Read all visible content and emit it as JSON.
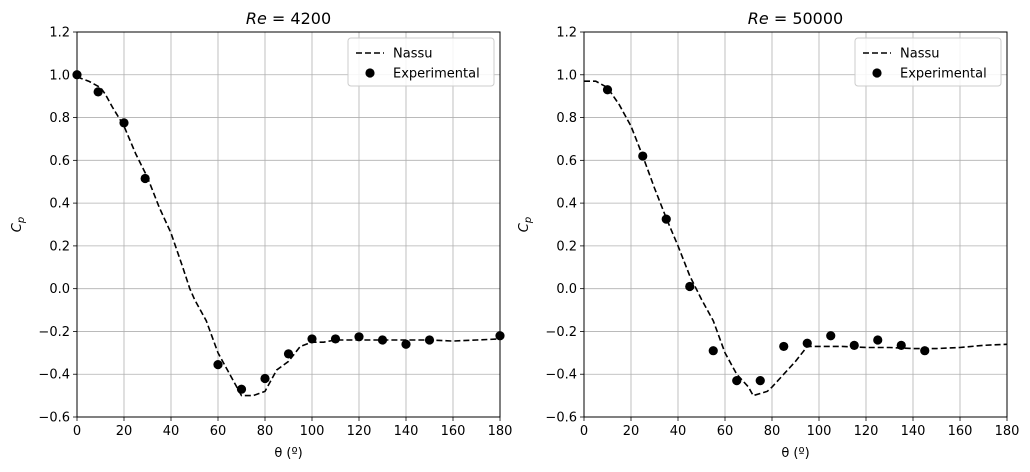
{
  "chart_data": [
    {
      "type": "line",
      "title": "Re = 4200",
      "title_italic_part": "Re",
      "title_rest": " = 4200",
      "xlabel": "θ (º)",
      "ylabel": "Cp",
      "xlim": [
        0,
        180
      ],
      "ylim": [
        -0.6,
        1.2
      ],
      "xticks": [
        "0",
        "20",
        "40",
        "60",
        "80",
        "100",
        "120",
        "140",
        "160",
        "180"
      ],
      "yticks": [
        "−0.6",
        "−0.4",
        "−0.2",
        "0.0",
        "0.2",
        "0.4",
        "0.6",
        "0.8",
        "1.0",
        "1.2"
      ],
      "grid": true,
      "legend": "top-right",
      "series": [
        {
          "name": "Nassu",
          "style": "dashed-line",
          "color": "#000000",
          "x": [
            0,
            5,
            10,
            12,
            15,
            20,
            25,
            30,
            35,
            40,
            45,
            48,
            50,
            55,
            60,
            65,
            70,
            75,
            80,
            85,
            90,
            95,
            100,
            105,
            110,
            120,
            130,
            140,
            150,
            160,
            170,
            180
          ],
          "y": [
            0.99,
            0.97,
            0.94,
            0.91,
            0.85,
            0.76,
            0.63,
            0.52,
            0.38,
            0.26,
            0.1,
            0.0,
            -0.05,
            -0.15,
            -0.3,
            -0.4,
            -0.5,
            -0.5,
            -0.48,
            -0.38,
            -0.34,
            -0.27,
            -0.25,
            -0.25,
            -0.24,
            -0.24,
            -0.24,
            -0.24,
            -0.24,
            -0.245,
            -0.24,
            -0.235
          ]
        },
        {
          "name": "Experimental",
          "style": "markers",
          "color": "#000000",
          "x": [
            0,
            9,
            20,
            29,
            60,
            70,
            80,
            90,
            100,
            110,
            120,
            130,
            140,
            150,
            180
          ],
          "y": [
            1.0,
            0.92,
            0.775,
            0.515,
            -0.355,
            -0.47,
            -0.42,
            -0.305,
            -0.235,
            -0.235,
            -0.225,
            -0.24,
            -0.26,
            -0.24,
            -0.22
          ]
        }
      ]
    },
    {
      "type": "line",
      "title": "Re = 50000",
      "title_italic_part": "Re",
      "title_rest": " = 50000",
      "xlabel": "θ (º)",
      "ylabel": "Cp",
      "xlim": [
        0,
        180
      ],
      "ylim": [
        -0.6,
        1.2
      ],
      "xticks": [
        "0",
        "20",
        "40",
        "60",
        "80",
        "100",
        "120",
        "140",
        "160",
        "180"
      ],
      "yticks": [
        "−0.6",
        "−0.4",
        "−0.2",
        "0.0",
        "0.2",
        "0.4",
        "0.6",
        "0.8",
        "1.0",
        "1.2"
      ],
      "grid": true,
      "legend": "top-right",
      "series": [
        {
          "name": "Nassu",
          "style": "dashed-line",
          "color": "#000000",
          "x": [
            0,
            5,
            10,
            15,
            20,
            25,
            30,
            35,
            40,
            45,
            50,
            55,
            60,
            65,
            70,
            72,
            75,
            78,
            80,
            85,
            90,
            95,
            100,
            110,
            120,
            130,
            140,
            150,
            160,
            170,
            180
          ],
          "y": [
            0.97,
            0.97,
            0.94,
            0.86,
            0.76,
            0.62,
            0.47,
            0.33,
            0.2,
            0.06,
            -0.05,
            -0.15,
            -0.3,
            -0.4,
            -0.46,
            -0.5,
            -0.49,
            -0.48,
            -0.46,
            -0.4,
            -0.34,
            -0.27,
            -0.27,
            -0.27,
            -0.275,
            -0.275,
            -0.28,
            -0.28,
            -0.275,
            -0.265,
            -0.26
          ]
        },
        {
          "name": "Experimental",
          "style": "markers",
          "color": "#000000",
          "x": [
            10,
            25,
            35,
            45,
            55,
            65,
            75,
            85,
            95,
            105,
            115,
            125,
            135,
            145
          ],
          "y": [
            0.93,
            0.62,
            0.325,
            0.01,
            -0.29,
            -0.43,
            -0.43,
            -0.27,
            -0.255,
            -0.22,
            -0.265,
            -0.24,
            -0.265,
            -0.29
          ]
        }
      ]
    }
  ]
}
